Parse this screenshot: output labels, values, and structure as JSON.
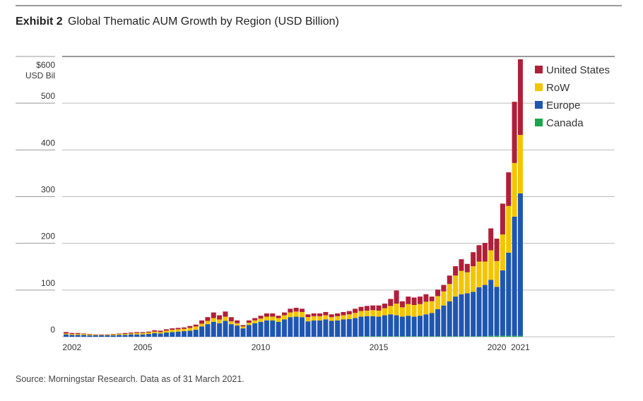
{
  "chart_data": {
    "type": "stacked-bar",
    "exhibit": "Exhibit 2",
    "title": "Global Thematic AUM Growth by Region (USD Billion)",
    "y_unit": "USD Bil",
    "source": "Source: Morningstar Research. Data as of 31 March 2021.",
    "categories": [
      null,
      "2002",
      null,
      null,
      null,
      null,
      null,
      null,
      null,
      null,
      null,
      null,
      null,
      "2005",
      null,
      null,
      null,
      null,
      null,
      null,
      null,
      null,
      null,
      null,
      null,
      null,
      null,
      null,
      null,
      null,
      null,
      null,
      null,
      "2010",
      null,
      null,
      null,
      null,
      null,
      null,
      null,
      null,
      null,
      null,
      null,
      null,
      null,
      null,
      null,
      null,
      null,
      null,
      null,
      "2015",
      null,
      null,
      null,
      null,
      null,
      null,
      null,
      null,
      null,
      null,
      null,
      null,
      null,
      null,
      null,
      null,
      null,
      null,
      null,
      "2020",
      null,
      null,
      null,
      "2021"
    ],
    "ylim": [
      0,
      600
    ],
    "yticks": [
      0,
      100,
      200,
      300,
      400,
      500,
      {
        "value": 600,
        "label": "$600"
      }
    ],
    "grid": true,
    "series": [
      {
        "name": "Canada",
        "color": "#1aa64a",
        "values": [
          0,
          0,
          0,
          0,
          0,
          0,
          0,
          0,
          0,
          0,
          0,
          0,
          0,
          0,
          0,
          0,
          0,
          0,
          0,
          0,
          0,
          0,
          0,
          0,
          0,
          0,
          0,
          0,
          0,
          0,
          0,
          0,
          0,
          0,
          0,
          0,
          0,
          0,
          0,
          0,
          0,
          0,
          0,
          0,
          0,
          0,
          0,
          0,
          0,
          0,
          1,
          1,
          1,
          1,
          1,
          1,
          1,
          1,
          1,
          1,
          1,
          1,
          1,
          1,
          1,
          1,
          1,
          1,
          1,
          1,
          1,
          1,
          2,
          2,
          2,
          2,
          2,
          2
        ]
      },
      {
        "name": "Europe",
        "color": "#1f56b0",
        "values": [
          5,
          4,
          4,
          4,
          3,
          3,
          3,
          3,
          3,
          4,
          4,
          5,
          5,
          5,
          6,
          8,
          7,
          9,
          10,
          11,
          12,
          13,
          15,
          22,
          27,
          32,
          29,
          34,
          27,
          24,
          18,
          25,
          29,
          32,
          35,
          35,
          32,
          37,
          42,
          43,
          42,
          33,
          35,
          35,
          37,
          34,
          35,
          37,
          38,
          40,
          42,
          43,
          43,
          42,
          45,
          47,
          45,
          42,
          44,
          42,
          44,
          47,
          50,
          58,
          66,
          75,
          85,
          90,
          92,
          95,
          105,
          110,
          120,
          105,
          140,
          178,
          255,
          305
        ]
      },
      {
        "name": "RoW",
        "color": "#f2c500",
        "values": [
          2,
          2,
          2,
          2,
          2,
          1,
          1,
          1,
          2,
          2,
          2,
          2,
          3,
          3,
          3,
          3,
          3,
          4,
          5,
          5,
          5,
          6,
          7,
          6,
          7,
          8,
          8,
          9,
          6,
          5,
          4,
          5,
          6,
          7,
          8,
          8,
          8,
          9,
          10,
          11,
          11,
          9,
          9,
          9,
          9,
          8,
          9,
          9,
          10,
          11,
          12,
          12,
          13,
          13,
          15,
          18,
          25,
          20,
          25,
          25,
          25,
          27,
          25,
          28,
          30,
          37,
          45,
          50,
          45,
          55,
          55,
          50,
          63,
          55,
          77,
          100,
          115,
          125
        ]
      },
      {
        "name": "United States",
        "color": "#b01f38",
        "values": [
          3,
          2,
          2,
          1,
          1,
          1,
          1,
          1,
          1,
          1,
          2,
          2,
          2,
          2,
          2,
          3,
          3,
          3,
          3,
          3,
          3,
          4,
          4,
          7,
          8,
          12,
          9,
          11,
          9,
          6,
          3,
          5,
          5,
          6,
          7,
          7,
          5,
          6,
          8,
          8,
          7,
          6,
          6,
          6,
          7,
          6,
          6,
          7,
          7,
          9,
          9,
          10,
          10,
          11,
          10,
          15,
          28,
          13,
          16,
          16,
          16,
          16,
          10,
          14,
          14,
          18,
          20,
          25,
          18,
          30,
          35,
          40,
          47,
          48,
          66,
          72,
          131,
          162
        ]
      }
    ],
    "legend_order": [
      3,
      2,
      1,
      0
    ]
  }
}
